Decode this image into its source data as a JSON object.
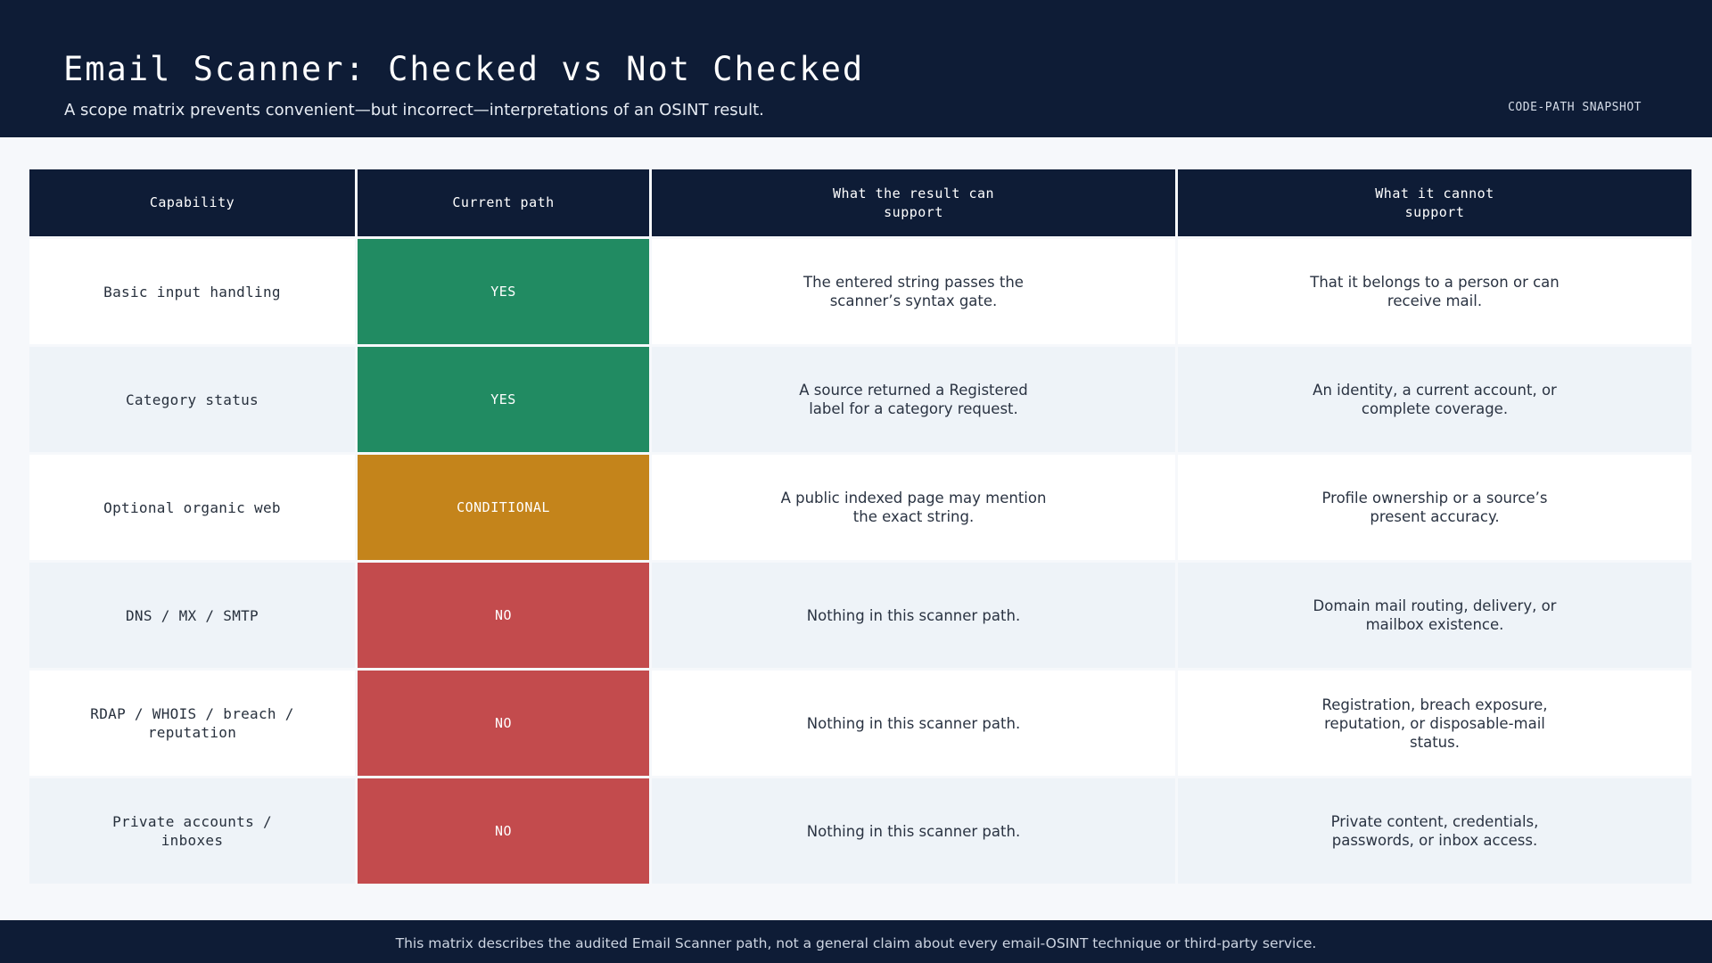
{
  "header": {
    "title": "Email Scanner: Checked vs Not Checked",
    "subtitle": "A scope matrix prevents convenient—but incorrect—interpretations of an OSINT result.",
    "tag": "CODE-PATH SNAPSHOT"
  },
  "matrix": {
    "columns": [
      "Capability",
      "Current path",
      "What the result can support",
      "What it cannot support"
    ],
    "rows": [
      {
        "capability": "Basic input handling",
        "status": "YES",
        "can_support": "The entered string passes the scanner’s syntax gate.",
        "cannot_support": "That it belongs to a person or can receive mail."
      },
      {
        "capability": "Category status",
        "status": "YES",
        "can_support": "A source returned a Registered label for a category request.",
        "cannot_support": "An identity, a current account, or complete coverage."
      },
      {
        "capability": "Optional organic web",
        "status": "CONDITIONAL",
        "can_support": "A public indexed page may mention the exact string.",
        "cannot_support": "Profile ownership or a source’s present accuracy."
      },
      {
        "capability": "DNS / MX / SMTP",
        "status": "NO",
        "can_support": "Nothing in this scanner path.",
        "cannot_support": "Domain mail routing, delivery, or mailbox existence."
      },
      {
        "capability": "RDAP / WHOIS / breach / reputation",
        "status": "NO",
        "can_support": "Nothing in this scanner path.",
        "cannot_support": "Registration, breach exposure, reputation, or disposable-mail status."
      },
      {
        "capability": "Private accounts / inboxes",
        "status": "NO",
        "can_support": "Nothing in this scanner path.",
        "cannot_support": "Private content, credentials, passwords, or inbox access."
      }
    ]
  },
  "colors": {
    "navy": "#0e1c36",
    "yes": "#218b62",
    "conditional": "#c4841b",
    "no": "#c34b4d"
  },
  "footer": {
    "note": "This matrix describes the audited Email Scanner path, not a general claim about every email-OSINT technique or third-party service."
  }
}
